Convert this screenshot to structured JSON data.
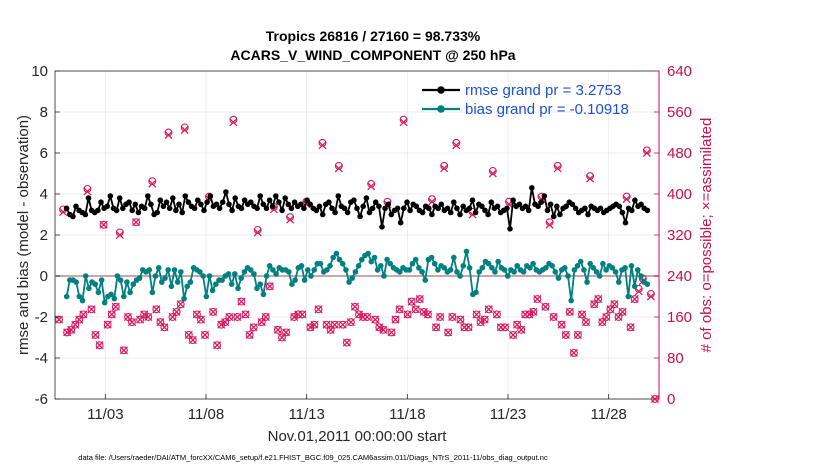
{
  "chart_data": {
    "type": "line",
    "title": "Tropics 26816 / 27160 = 98.733%",
    "subtitle": "ACARS_V_WIND_COMPONENT @ 250 hPa",
    "xlabel": "Nov.01,2011 00:00:00 start",
    "ylabel": "rmse and bias (model - observation)",
    "ylabel_right": "# of obs: o=possible; ×=assimilated",
    "footnote": "data file: /Users/raeder/DAI/ATM_forcXX/CAM6_setup/f.e21.FHIST_BGC.f09_025.CAM6assim.011/Diags_NTrS_2011-11/obs_diag_output.nc",
    "xlim": [
      0.5,
      30.5
    ],
    "ylim": [
      -6,
      10
    ],
    "ylim_right": [
      0,
      640
    ],
    "x_ticks": [
      3,
      8,
      13,
      18,
      23,
      28
    ],
    "x_tick_labels": [
      "11/03",
      "11/08",
      "11/13",
      "11/18",
      "11/23",
      "11/28"
    ],
    "y_ticks": [
      -6,
      -4,
      -2,
      0,
      2,
      4,
      6,
      8,
      10
    ],
    "y_tick_labels": [
      "-6",
      "-4",
      "-2",
      "0",
      "2",
      "4",
      "6",
      "8",
      "10"
    ],
    "y_right_ticks": [
      0,
      80,
      160,
      240,
      320,
      400,
      480,
      560,
      640
    ],
    "y_right_tick_labels": [
      "0",
      "80",
      "160",
      "240",
      "320",
      "400",
      "480",
      "560",
      "640"
    ],
    "legend": {
      "position": "top-right",
      "entries": [
        "rmse grand pr = 3.2753",
        "bias grand pr = -0.10918"
      ]
    },
    "colors": {
      "rmse": "#000000",
      "bias": "#008080",
      "obs": "#d81b60",
      "zero_line": "#c8a8a8",
      "right_axis": "#c8104c",
      "legend_text": "#1f4fd8"
    },
    "series": [
      {
        "name": "rmse",
        "axis": "left",
        "values": [
          3.3,
          3.0,
          2.9,
          3.4,
          3.2,
          3.1,
          3.0,
          3.8,
          3.2,
          3.1,
          3.2,
          3.6,
          3.3,
          3.4,
          3.9,
          3.3,
          3.2,
          3.8,
          3.3,
          3.5,
          3.6,
          3.2,
          3.5,
          3.1,
          3.4,
          3.3,
          3.9,
          3.5,
          3.0,
          3.1,
          3.7,
          3.4,
          3.6,
          3.3,
          3.8,
          3.2,
          3.5,
          3.1,
          3.9,
          3.6,
          3.4,
          3.3,
          3.7,
          3.5,
          3.2,
          3.6,
          3.9,
          3.4,
          3.5,
          3.3,
          3.6,
          4.1,
          3.5,
          3.2,
          3.8,
          3.4,
          3.3,
          3.7,
          3.5,
          3.6,
          3.4,
          3.3,
          3.9,
          3.5,
          3.3,
          3.7,
          3.4,
          3.9,
          3.6,
          3.2,
          3.8,
          3.5,
          3.3,
          3.6,
          3.4,
          3.5,
          3.3,
          3.7,
          3.5,
          3.3,
          3.2,
          3.4,
          3.0,
          3.5,
          3.6,
          3.3,
          3.1,
          3.9,
          3.4,
          3.3,
          3.1,
          3.6,
          3.7,
          3.3,
          2.9,
          3.4,
          3.8,
          3.1,
          3.3,
          3.6,
          3.4,
          2.4,
          3.3,
          3.5,
          3.0,
          3.2,
          3.3,
          2.6,
          3.3,
          3.6,
          3.2,
          3.5,
          3.4,
          3.2,
          3.1,
          3.4,
          3.3,
          3.0,
          3.4,
          3.3,
          3.5,
          3.2,
          3.3,
          3.1,
          3.6,
          3.3,
          3.0,
          3.4,
          3.2,
          3.3,
          3.7,
          3.1,
          3.5,
          3.4,
          3.2,
          3.0,
          3.6,
          3.3,
          3.4,
          3.1,
          3.2,
          3.3,
          2.3,
          3.7,
          3.4,
          3.5,
          3.3,
          3.4,
          3.2,
          4.3,
          3.5,
          3.4,
          3.6,
          3.9,
          3.2,
          3.5,
          2.9,
          3.4,
          3.0,
          3.3,
          3.4,
          3.6,
          3.5,
          3.3,
          3.1,
          3.2,
          3.3,
          3.0,
          3.4,
          3.3,
          3.2,
          3.3,
          3.1,
          3.2,
          3.3,
          3.4,
          3.5,
          3.4,
          3.1,
          2.6,
          3.3,
          3.2,
          3.7,
          3.4,
          3.5,
          3.3,
          3.2
        ]
      },
      {
        "name": "bias",
        "axis": "left",
        "values": [
          -1.0,
          -0.2,
          -0.2,
          -0.3,
          -1.0,
          -1.2,
          0.0,
          -0.6,
          -0.3,
          -0.4,
          -0.8,
          -0.2,
          -1.3,
          -1.0,
          -0.9,
          -1.1,
          0.0,
          -0.2,
          -1.0,
          -0.3,
          -0.8,
          -0.4,
          -0.2,
          -0.1,
          0.3,
          0.2,
          0.3,
          -0.8,
          0.0,
          0.4,
          -0.3,
          -0.1,
          0.3,
          -0.5,
          0.3,
          -0.3,
          0.2,
          -1.1,
          -0.5,
          -0.3,
          0.4,
          0.3,
          0.2,
          0.0,
          -1.0,
          0.0,
          -0.7,
          -0.4,
          -0.2,
          -0.2,
          0.0,
          0.1,
          -0.4,
          0.1,
          -0.6,
          -0.1,
          0.2,
          0.4,
          0.3,
          0.1,
          -0.6,
          -0.4,
          -0.9,
          0.0,
          0.5,
          0.3,
          0.1,
          0.4,
          0.3,
          0.3,
          0.2,
          -0.4,
          -0.2,
          0.4,
          0.5,
          -0.2,
          0.3,
          0.0,
          0.3,
          0.6,
          0.6,
          0.2,
          0.3,
          0.5,
          0.9,
          1.1,
          0.8,
          0.6,
          0.3,
          -0.3,
          -0.1,
          0.2,
          0.5,
          0.8,
          1.0,
          1.1,
          0.7,
          0.9,
          0.3,
          0.5,
          0.0,
          0.8,
          0.6,
          0.4,
          0.3,
          0.2,
          0.4,
          0.3,
          0.3,
          0.6,
          0.8,
          0.4,
          0.2,
          -0.2,
          0.8,
          0.9,
          0.6,
          0.3,
          0.5,
          0.4,
          0.2,
          0.3,
          0.9,
          0.2,
          0.0,
          0.5,
          1.2,
          0.4,
          -0.9,
          -0.8,
          0.2,
          0.4,
          0.7,
          0.6,
          0.4,
          0.2,
          0.7,
          0.4,
          0.3,
          0.0,
          0.3,
          0.2,
          0.5,
          0.3,
          0.2,
          0.5,
          0.4,
          0.6,
          0.3,
          0.2,
          0.3,
          0.4,
          0.6,
          0.5,
          0.2,
          -0.1,
          0.3,
          0.4,
          0.0,
          -1.2,
          0.3,
          0.5,
          0.7,
          0.3,
          -0.3,
          0.6,
          0.4,
          0.2,
          0.0,
          0.6,
          0.3,
          0.5,
          0.4,
          0.2,
          -0.3,
          0.3,
          0.4,
          -1.0,
          0.5,
          -0.5,
          0.3,
          0.0,
          -0.3,
          -0.4
        ]
      },
      {
        "name": "obs_possible",
        "axis": "right",
        "values": [
          155,
          370,
          130,
          135,
          145,
          155,
          165,
          410,
          175,
          125,
          105,
          340,
          145,
          165,
          180,
          325,
          95,
          160,
          150,
          345,
          155,
          165,
          160,
          425,
          175,
          150,
          140,
          520,
          160,
          170,
          185,
          530,
          125,
          115,
          165,
          155,
          125,
          395,
          170,
          105,
          145,
          150,
          160,
          545,
          160,
          190,
          165,
          125,
          140,
          330,
          150,
          160,
          220,
          375,
          135,
          120,
          130,
          355,
          160,
          165,
          165,
          385,
          140,
          145,
          175,
          500,
          145,
          135,
          145,
          455,
          145,
          110,
          150,
          180,
          165,
          160,
          160,
          420,
          155,
          140,
          135,
          385,
          130,
          155,
          175,
          545,
          165,
          190,
          175,
          195,
          170,
          165,
          390,
          140,
          160,
          455,
          130,
          160,
          500,
          155,
          140,
          140,
          365,
          165,
          150,
          155,
          175,
          445,
          165,
          140,
          140,
          385,
          125,
          145,
          135,
          165,
          165,
          170,
          195,
          395,
          180,
          345,
          160,
          455,
          145,
          125,
          170,
          90,
          125,
          165,
          150,
          435,
          185,
          195,
          150,
          160,
          175,
          185,
          160,
          170,
          395,
          140,
          195,
          215,
          235,
          485,
          205,
          0
        ]
      },
      {
        "name": "obs_assimilated",
        "axis": "right",
        "values": [
          155,
          365,
          130,
          135,
          145,
          155,
          165,
          405,
          175,
          125,
          105,
          340,
          145,
          165,
          180,
          320,
          95,
          160,
          150,
          345,
          155,
          165,
          160,
          420,
          175,
          150,
          140,
          515,
          160,
          170,
          185,
          525,
          125,
          115,
          165,
          155,
          125,
          390,
          170,
          105,
          145,
          150,
          160,
          540,
          160,
          190,
          165,
          125,
          140,
          325,
          150,
          160,
          220,
          370,
          135,
          120,
          130,
          350,
          160,
          165,
          165,
          380,
          140,
          145,
          175,
          495,
          145,
          135,
          145,
          450,
          145,
          110,
          150,
          180,
          165,
          160,
          160,
          415,
          155,
          140,
          135,
          380,
          130,
          155,
          175,
          540,
          165,
          190,
          175,
          195,
          170,
          165,
          385,
          140,
          160,
          450,
          130,
          160,
          495,
          155,
          140,
          140,
          360,
          165,
          150,
          155,
          175,
          440,
          165,
          140,
          140,
          380,
          125,
          145,
          135,
          165,
          165,
          170,
          195,
          390,
          180,
          340,
          160,
          450,
          145,
          125,
          170,
          90,
          125,
          165,
          150,
          430,
          185,
          195,
          150,
          160,
          175,
          185,
          160,
          170,
          390,
          140,
          195,
          210,
          230,
          480,
          200,
          0
        ]
      }
    ]
  }
}
